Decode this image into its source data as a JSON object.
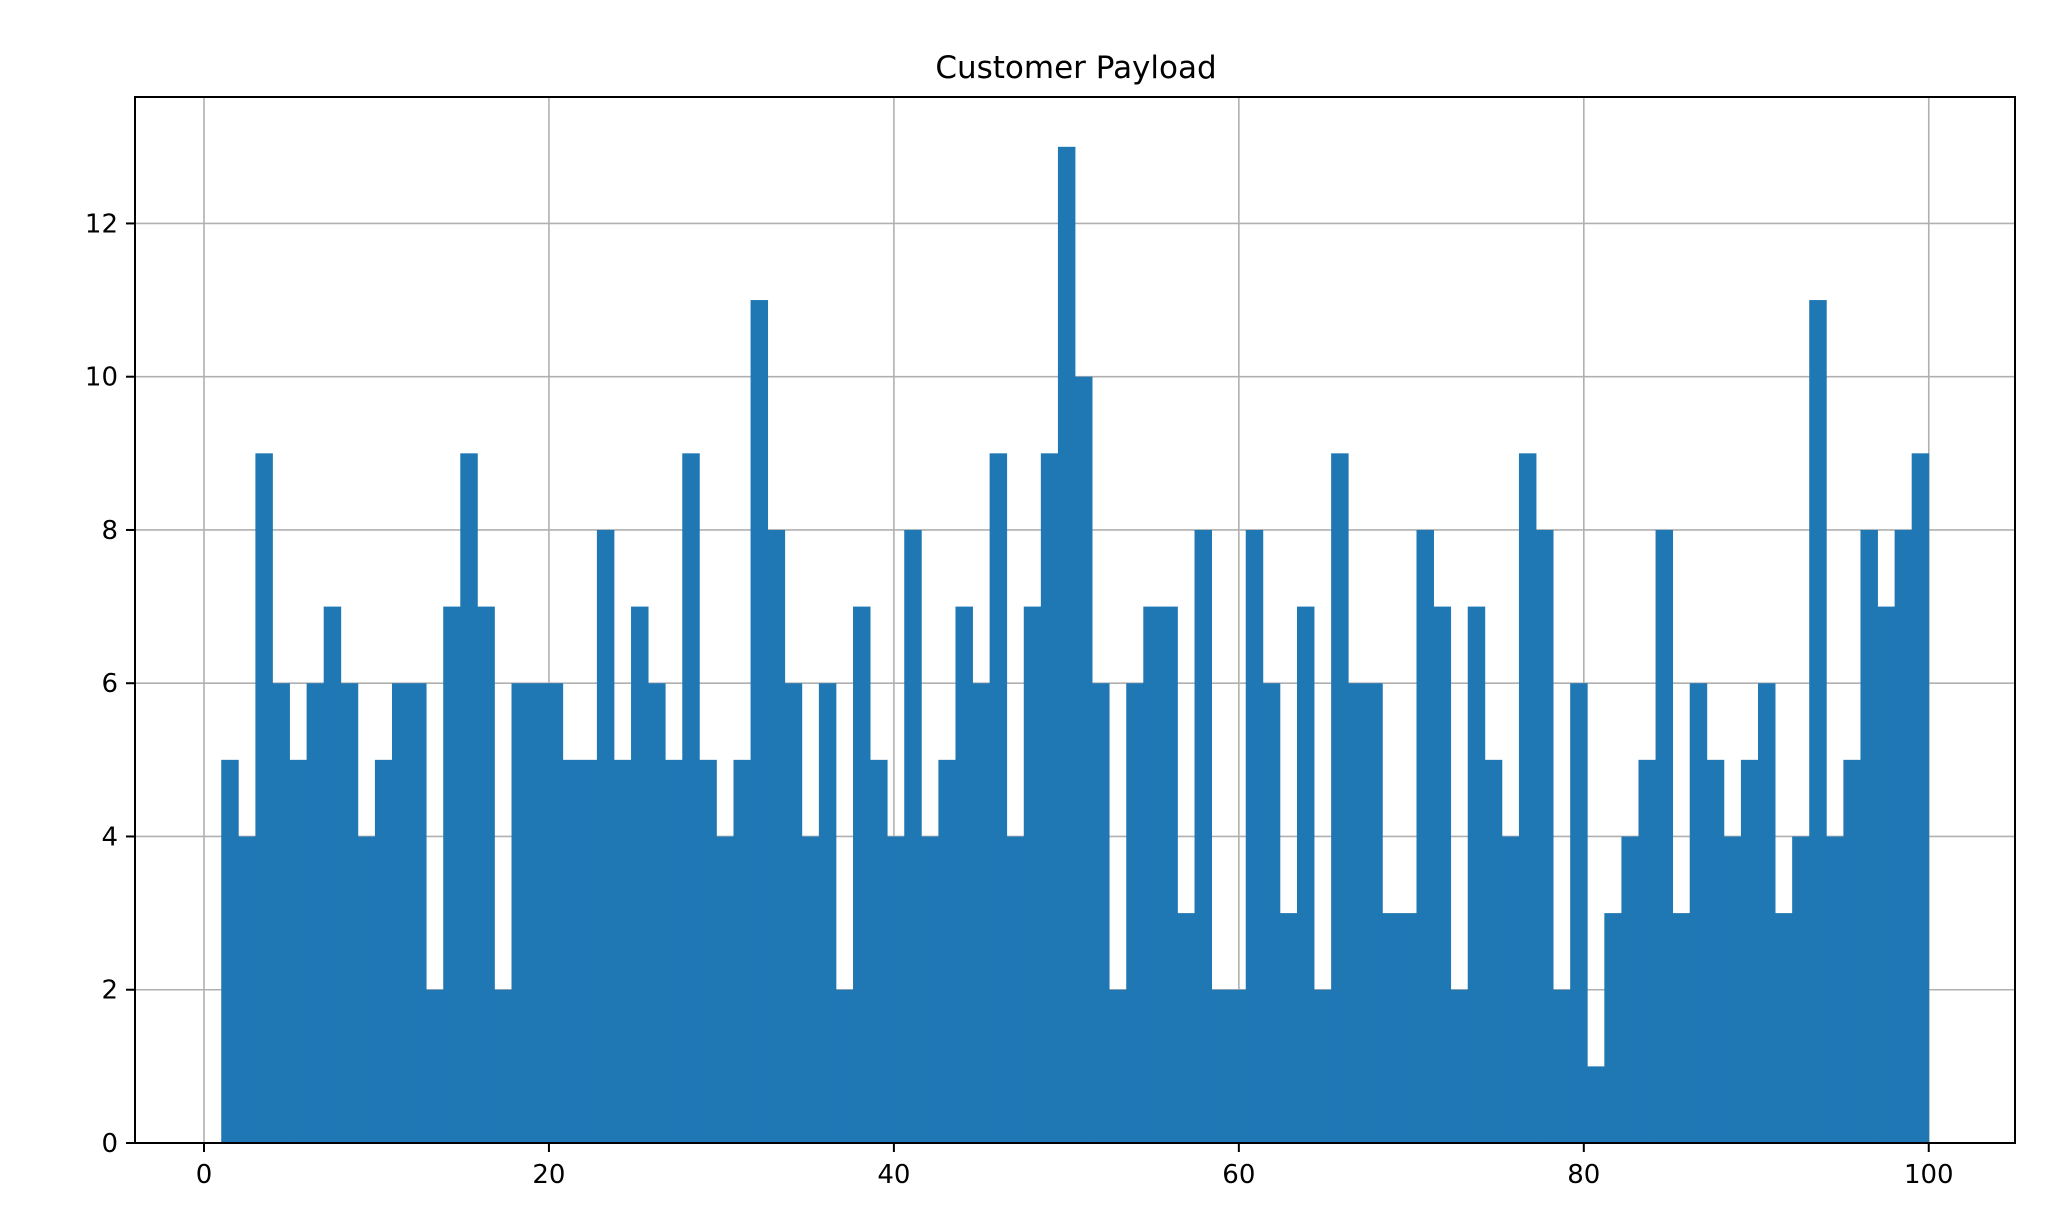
{
  "chart_data": {
    "type": "bar",
    "title": "Customer Payload",
    "xlabel": "",
    "ylabel": "",
    "xlim": [
      -4,
      105
    ],
    "ylim": [
      0,
      13.65
    ],
    "bin_start": 1,
    "bin_width": 0.99,
    "bin_count": 100,
    "xticks": [
      0,
      20,
      40,
      60,
      80,
      100
    ],
    "yticks": [
      0,
      2,
      4,
      6,
      8,
      10,
      12
    ],
    "grid": true,
    "legend": "none",
    "bar_color": "#1f77b4",
    "grid_color": "#b0b0b0",
    "values": [
      5,
      4,
      9,
      6,
      5,
      6,
      7,
      6,
      4,
      5,
      6,
      6,
      2,
      7,
      9,
      7,
      2,
      6,
      6,
      6,
      5,
      5,
      8,
      5,
      7,
      6,
      5,
      9,
      5,
      4,
      5,
      11,
      8,
      6,
      4,
      6,
      2,
      7,
      5,
      4,
      8,
      4,
      5,
      7,
      6,
      9,
      4,
      7,
      9,
      13,
      10,
      6,
      2,
      6,
      7,
      7,
      3,
      8,
      2,
      2,
      8,
      6,
      3,
      7,
      2,
      9,
      6,
      6,
      3,
      3,
      8,
      7,
      2,
      7,
      5,
      4,
      9,
      8,
      2,
      6,
      1,
      3,
      4,
      5,
      8,
      3,
      6,
      5,
      4,
      5,
      6,
      3,
      4,
      11,
      4,
      5,
      8,
      7,
      8,
      9
    ]
  }
}
